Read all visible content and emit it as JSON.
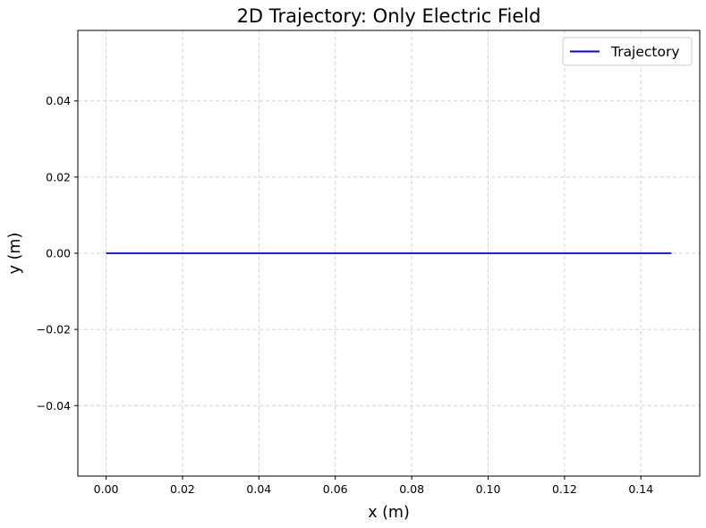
{
  "chart_data": {
    "type": "line",
    "title": "2D Trajectory: Only Electric Field",
    "xlabel": "x (m)",
    "ylabel": "y (m)",
    "xlim": [
      -0.0074,
      0.1554
    ],
    "ylim": [
      -0.0585,
      0.0585
    ],
    "xticks": [
      0.0,
      0.02,
      0.04,
      0.06,
      0.08,
      0.1,
      0.12,
      0.14
    ],
    "xtick_labels": [
      "0.00",
      "0.02",
      "0.04",
      "0.06",
      "0.08",
      "0.10",
      "0.12",
      "0.14"
    ],
    "yticks": [
      0.04,
      0.02,
      0.0,
      -0.02,
      -0.04
    ],
    "ytick_labels": [
      "0.04",
      "0.02",
      "0.00",
      "−0.02",
      "−0.04"
    ],
    "grid": true,
    "legend_position": "top-right",
    "series": [
      {
        "name": "Trajectory",
        "color": "#0000ff",
        "x": [
          0.0,
          0.148
        ],
        "y": [
          0.0,
          0.0
        ]
      }
    ]
  }
}
